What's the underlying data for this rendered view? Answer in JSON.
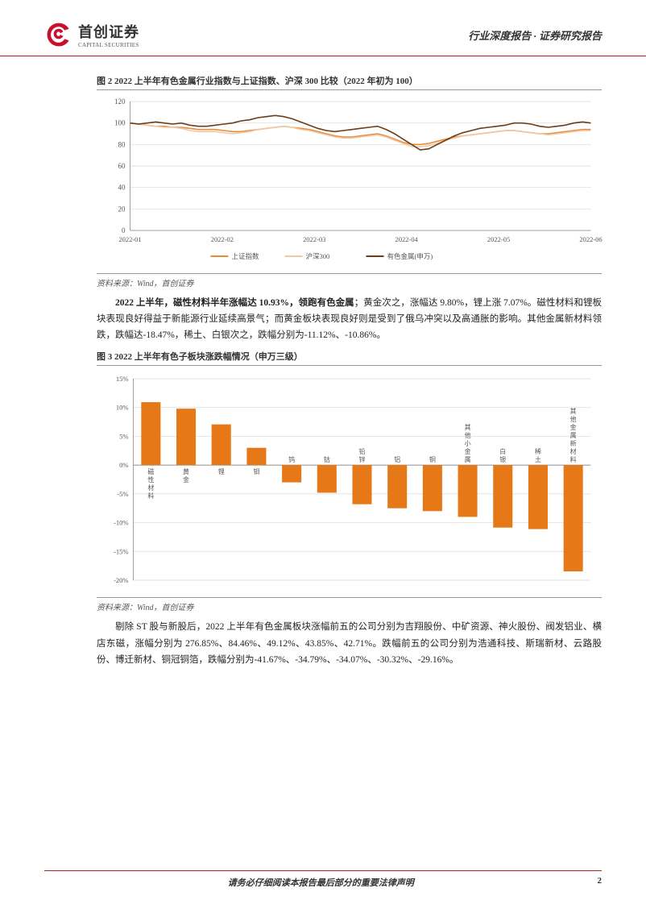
{
  "header": {
    "logo_cn": "首创证券",
    "logo_en": "CAPITAL SECURITIES",
    "right": "行业深度报告 · 证券研究报告"
  },
  "fig2": {
    "title": "图 2 2022 上半年有色金属行业指数与上证指数、沪深 300 比较（2022 年初为 100）",
    "source": "资料来源：Wind，首创证券",
    "ylim": [
      0,
      120
    ],
    "ytick_step": 20,
    "yticks": [
      "0",
      "20",
      "40",
      "60",
      "80",
      "100",
      "120"
    ],
    "xticks": [
      "2022-01",
      "2022-02",
      "2022-03",
      "2022-04",
      "2022-05",
      "2022-06"
    ],
    "legend": [
      "上证指数",
      "沪深300",
      "有色金属(申万)"
    ],
    "colors": [
      "#e88c3a",
      "#eec9a8",
      "#6b3d1a"
    ],
    "line_width": 1.6,
    "grid_color": "#d9d9d9",
    "bg": "#ffffff",
    "series": {
      "sh": [
        100,
        99,
        98,
        97,
        97,
        96,
        96,
        95,
        94,
        94,
        94,
        93,
        92,
        92,
        93,
        94,
        95,
        96,
        97,
        96,
        95,
        94,
        92,
        90,
        88,
        87,
        87,
        88,
        89,
        90,
        88,
        85,
        82,
        80,
        80,
        81,
        83,
        85,
        87,
        88,
        89,
        90,
        91,
        92,
        93,
        93,
        92,
        91,
        90,
        90,
        91,
        92,
        93,
        94,
        94
      ],
      "hs300": [
        100,
        99,
        98,
        97,
        96,
        96,
        95,
        93,
        92,
        92,
        92,
        91,
        90,
        91,
        92,
        94,
        95,
        96,
        97,
        96,
        94,
        93,
        91,
        89,
        87,
        86,
        86,
        87,
        88,
        89,
        87,
        84,
        81,
        78,
        78,
        79,
        81,
        84,
        86,
        88,
        89,
        90,
        91,
        92,
        93,
        93,
        92,
        91,
        90,
        89,
        90,
        91,
        92,
        93,
        93
      ],
      "metal": [
        100,
        99,
        100,
        101,
        100,
        99,
        100,
        98,
        97,
        97,
        98,
        99,
        100,
        102,
        103,
        105,
        106,
        107,
        106,
        104,
        101,
        98,
        95,
        93,
        92,
        93,
        94,
        95,
        96,
        97,
        94,
        90,
        85,
        80,
        75,
        76,
        80,
        84,
        88,
        91,
        93,
        95,
        96,
        97,
        98,
        100,
        100,
        99,
        97,
        96,
        97,
        98,
        100,
        101,
        100
      ]
    }
  },
  "para1": {
    "bold": "2022 上半年，磁性材料半年涨幅达 10.93%，领跑有色金属",
    "rest": "；黄金次之，涨幅达 9.80%，锂上涨 7.07%。磁性材料和锂板块表现良好得益于新能源行业延续高景气；而黄金板块表现良好则是受到了俄乌冲突以及高通胀的影响。其他金属新材料领跌，跌幅达-18.47%，稀土、白银次之，跌幅分别为-11.12%、-10.86%。"
  },
  "fig3": {
    "title": "图 3 2022 上半年有色子板块涨跌幅情况（申万三级）",
    "source": "资料来源：Wind，首创证券",
    "ylim": [
      -20,
      15
    ],
    "yticks": [
      "-20%",
      "-15%",
      "-10%",
      "-5%",
      "0%",
      "5%",
      "10%",
      "15%"
    ],
    "categories": [
      "磁性材料",
      "黄金",
      "锂",
      "钼",
      "钨",
      "钴",
      "铅锌",
      "铝",
      "铜",
      "其他小金属",
      "白银",
      "稀土",
      "其他金属新材料"
    ],
    "values": [
      10.93,
      9.8,
      7.07,
      3.0,
      -3.0,
      -4.8,
      -6.8,
      -7.5,
      -8.0,
      -9.0,
      -10.86,
      -11.12,
      -18.47
    ],
    "bar_color": "#e67817",
    "grid_color": "#d9d9d9",
    "label_fontsize": 8,
    "bg": "#ffffff"
  },
  "para2": "剔除 ST 股与新股后，2022 上半年有色金属板块涨幅前五的公司分别为吉翔股份、中矿资源、神火股份、阀发铝业、横店东磁，涨幅分别为 276.85%、84.46%、49.12%、43.85%、42.71%。跌幅前五的公司分别为浩通科技、斯瑞新材、云路股份、博迁新材、铜冠铜箔，跌幅分别为-41.67%、-34.79%、-34.07%、-30.32%、-29.16%。",
  "footer": {
    "center": "请务必仔细阅读本报告最后部分的重要法律声明",
    "page": "2"
  }
}
